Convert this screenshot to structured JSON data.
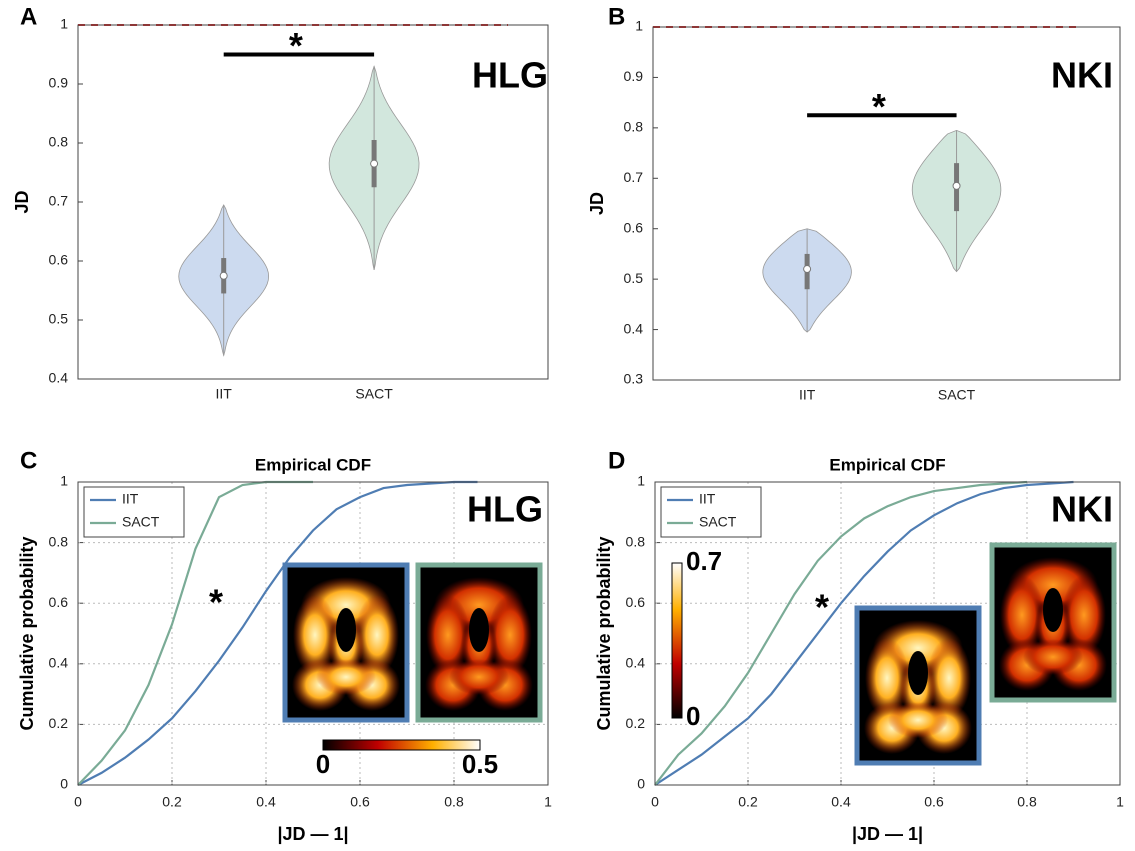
{
  "chart_data": [
    {
      "type": "violin",
      "panel_label": "A",
      "annotation": "HLG",
      "significance": "*",
      "ylabel": "JD",
      "categories": [
        "IIT",
        "SACT"
      ],
      "colors": [
        "#8eaedc",
        "#9cc9b3"
      ],
      "stats": [
        {
          "min": 0.44,
          "q1": 0.545,
          "median": 0.575,
          "q3": 0.605,
          "max": 0.695
        },
        {
          "min": 0.585,
          "q1": 0.725,
          "median": 0.765,
          "q3": 0.805,
          "max": 0.93
        }
      ],
      "reference_line": 1,
      "reference_color": "#d62728",
      "ylim": [
        0.4,
        1
      ],
      "yticks": [
        0.4,
        0.5,
        0.6,
        0.7,
        0.8,
        0.9,
        1
      ]
    },
    {
      "type": "violin",
      "panel_label": "B",
      "annotation": "NKI",
      "significance": "*",
      "ylabel": "JD",
      "categories": [
        "IIT",
        "SACT"
      ],
      "colors": [
        "#8eaedc",
        "#9cc9b3"
      ],
      "stats": [
        {
          "min": 0.395,
          "q1": 0.48,
          "median": 0.52,
          "q3": 0.55,
          "max": 0.6
        },
        {
          "min": 0.515,
          "q1": 0.635,
          "median": 0.685,
          "q3": 0.73,
          "max": 0.795
        }
      ],
      "reference_line": 1,
      "reference_color": "#d62728",
      "ylim": [
        0.3,
        1
      ],
      "yticks": [
        0.3,
        0.4,
        0.5,
        0.6,
        0.7,
        0.8,
        0.9,
        1
      ]
    },
    {
      "type": "line",
      "panel_label": "C",
      "title": "Empirical CDF",
      "annotation": "HLG",
      "significance": "*",
      "xlabel": "|JD — 1|",
      "ylabel": "Cumulative probability",
      "legend": "upper left",
      "grid": true,
      "series": [
        {
          "name": "IIT",
          "color": "#4f7db3",
          "x": [
            0,
            0.05,
            0.1,
            0.15,
            0.2,
            0.25,
            0.3,
            0.35,
            0.4,
            0.45,
            0.5,
            0.55,
            0.6,
            0.65,
            0.7,
            0.8,
            0.85
          ],
          "values": [
            0,
            0.04,
            0.09,
            0.15,
            0.22,
            0.31,
            0.41,
            0.52,
            0.64,
            0.75,
            0.84,
            0.91,
            0.95,
            0.98,
            0.99,
            1,
            1
          ]
        },
        {
          "name": "SACT",
          "color": "#7aab96",
          "x": [
            0,
            0.05,
            0.1,
            0.15,
            0.2,
            0.25,
            0.3,
            0.35,
            0.4,
            0.5
          ],
          "values": [
            0,
            0.08,
            0.18,
            0.33,
            0.53,
            0.78,
            0.95,
            0.99,
            1,
            1
          ]
        }
      ],
      "colorbar_ticks": [
        0,
        0.5
      ],
      "xlim": [
        0,
        1
      ],
      "xticks": [
        0,
        0.2,
        0.4,
        0.6,
        0.8,
        1
      ],
      "ylim": [
        0,
        1
      ],
      "yticks": [
        0,
        0.2,
        0.4,
        0.6,
        0.8,
        1
      ]
    },
    {
      "type": "line",
      "panel_label": "D",
      "title": "Empirical CDF",
      "annotation": "NKI",
      "significance": "*",
      "xlabel": "|JD — 1|",
      "ylabel": "Cumulative probability",
      "legend": "upper left",
      "grid": true,
      "series": [
        {
          "name": "IIT",
          "color": "#4f7db3",
          "x": [
            0,
            0.05,
            0.1,
            0.15,
            0.2,
            0.25,
            0.3,
            0.35,
            0.4,
            0.45,
            0.5,
            0.55,
            0.6,
            0.65,
            0.7,
            0.75,
            0.8,
            0.9
          ],
          "values": [
            0,
            0.05,
            0.1,
            0.16,
            0.22,
            0.3,
            0.4,
            0.5,
            0.6,
            0.69,
            0.77,
            0.84,
            0.89,
            0.93,
            0.96,
            0.98,
            0.99,
            1
          ]
        },
        {
          "name": "SACT",
          "color": "#7aab96",
          "x": [
            0,
            0.05,
            0.1,
            0.15,
            0.2,
            0.25,
            0.3,
            0.35,
            0.4,
            0.45,
            0.5,
            0.55,
            0.6,
            0.65,
            0.7,
            0.8
          ],
          "values": [
            0,
            0.1,
            0.17,
            0.26,
            0.37,
            0.5,
            0.63,
            0.74,
            0.82,
            0.88,
            0.92,
            0.95,
            0.97,
            0.98,
            0.99,
            1
          ]
        }
      ],
      "colorbar_ticks": [
        0,
        0.7
      ],
      "xlim": [
        0,
        1
      ],
      "xticks": [
        0,
        0.2,
        0.4,
        0.6,
        0.8,
        1
      ],
      "ylim": [
        0,
        1
      ],
      "yticks": [
        0,
        0.2,
        0.4,
        0.6,
        0.8,
        1
      ]
    }
  ]
}
